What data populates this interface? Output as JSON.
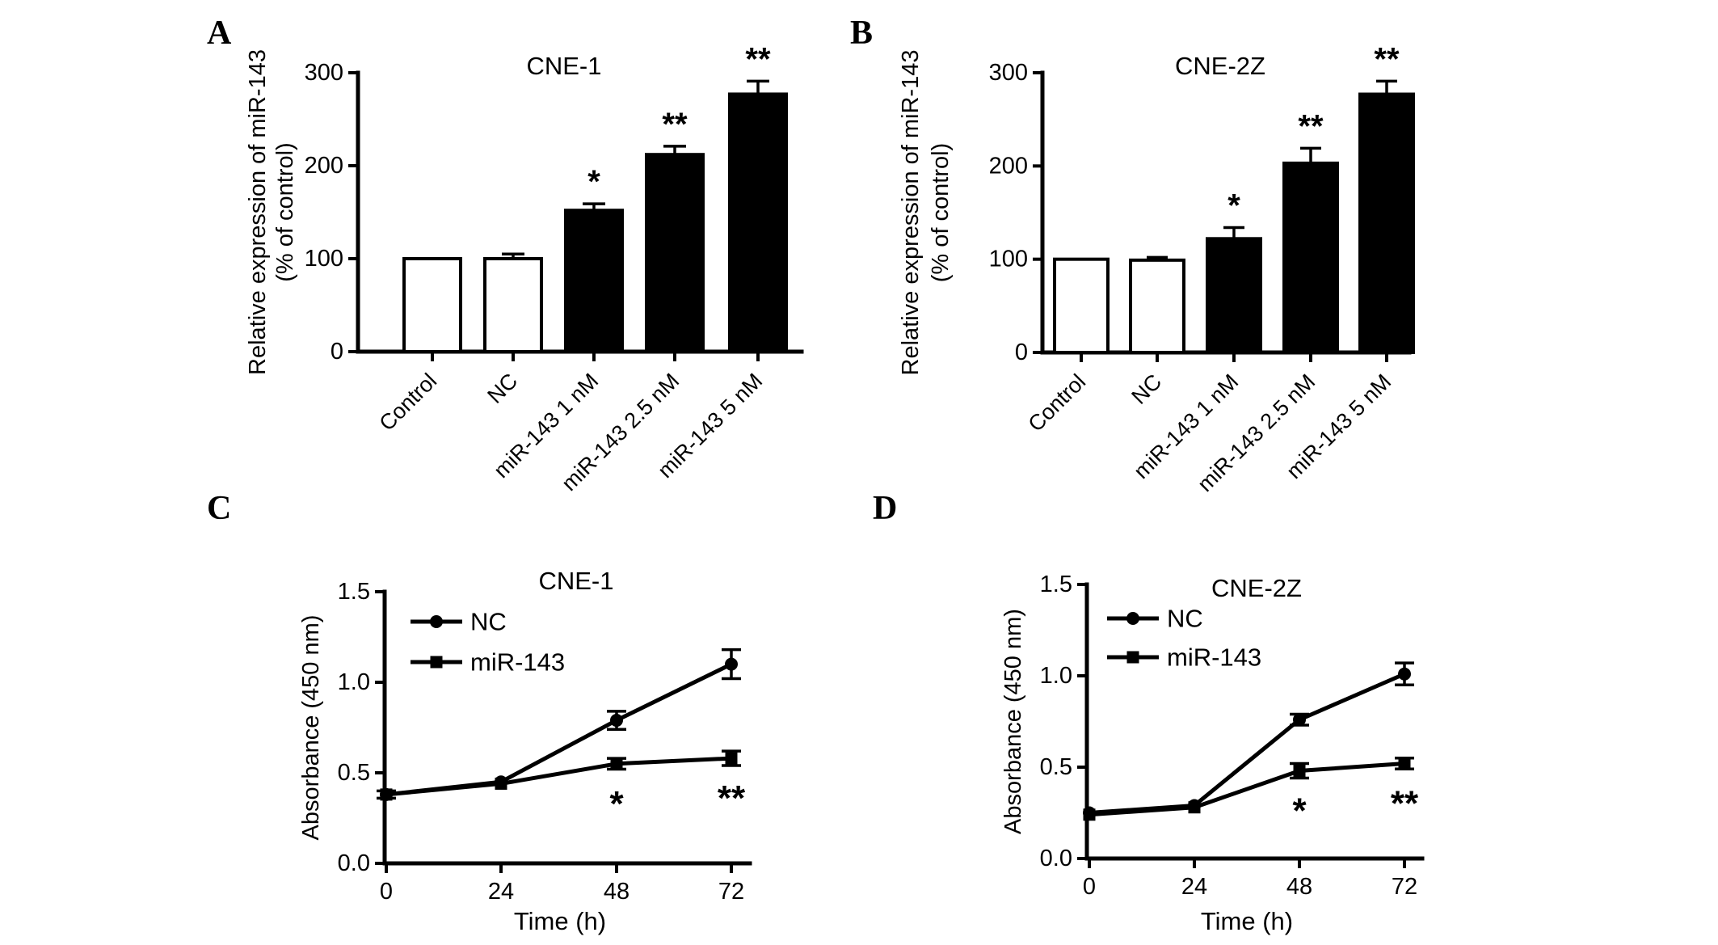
{
  "figure_background": "#ffffff",
  "ink_color": "#000000",
  "chart_data": [
    {
      "panel": "A",
      "type": "bar",
      "title": "CNE-1",
      "ylabel_lines": [
        "Relative expression of miR-143",
        "(% of control)"
      ],
      "categories": [
        "Control",
        "NC",
        "miR-143 1 nM",
        "miR-143 2.5 nM",
        "miR-143 5 nM"
      ],
      "values": [
        100,
        100,
        152,
        212,
        277
      ],
      "errors": [
        0,
        5,
        7,
        9,
        14
      ],
      "bar_colors": [
        "#ffffff",
        "#ffffff",
        "#000000",
        "#000000",
        "#000000"
      ],
      "significance": [
        "",
        "",
        "*",
        "**",
        "**"
      ],
      "yticks": [
        0,
        100,
        200,
        300
      ],
      "ylim": [
        0,
        300
      ]
    },
    {
      "panel": "B",
      "type": "bar",
      "title": "CNE-2Z",
      "ylabel_lines": [
        "Relative expression of miR-143",
        "(% of control)"
      ],
      "categories": [
        "Control",
        "NC",
        "miR-143 1 nM",
        "miR-143 2.5 nM",
        "miR-143 5 nM"
      ],
      "values": [
        100,
        99,
        122,
        203,
        277
      ],
      "errors": [
        0,
        3,
        12,
        16,
        14
      ],
      "bar_colors": [
        "#ffffff",
        "#ffffff",
        "#000000",
        "#000000",
        "#000000"
      ],
      "significance": [
        "",
        "",
        "*",
        "**",
        "**"
      ],
      "yticks": [
        0,
        100,
        200,
        300
      ],
      "ylim": [
        0,
        300
      ]
    },
    {
      "panel": "C",
      "type": "line",
      "title": "CNE-1",
      "xlabel": "Time (h)",
      "ylabel": "Absorbance (450 nm)",
      "x": [
        0,
        24,
        48,
        72
      ],
      "xticks": [
        "0",
        "24",
        "48",
        "72"
      ],
      "yticks": [
        "0.0",
        "0.5",
        "1.0",
        "1.5"
      ],
      "ylim": [
        0,
        1.5
      ],
      "legend_position": "top-left-inside",
      "series": [
        {
          "name": "NC",
          "marker": "circle",
          "values": [
            0.38,
            0.45,
            0.79,
            1.1
          ],
          "errors": [
            0.01,
            0.01,
            0.05,
            0.08
          ]
        },
        {
          "name": "miR-143",
          "marker": "square",
          "values": [
            0.38,
            0.44,
            0.55,
            0.58
          ],
          "errors": [
            0.02,
            0.01,
            0.03,
            0.04
          ]
        }
      ],
      "annotations": [
        {
          "at_x": 48,
          "text": "*"
        },
        {
          "at_x": 72,
          "text": "**"
        }
      ]
    },
    {
      "panel": "D",
      "type": "line",
      "title": "CNE-2Z",
      "xlabel": "Time (h)",
      "ylabel": "Absorbance (450 nm)",
      "x": [
        0,
        24,
        48,
        72
      ],
      "xticks": [
        "0",
        "24",
        "48",
        "72"
      ],
      "yticks": [
        "0.0",
        "0.5",
        "1.0",
        "1.5"
      ],
      "ylim": [
        0,
        1.5
      ],
      "legend_position": "top-left-inside",
      "series": [
        {
          "name": "NC",
          "marker": "circle",
          "values": [
            0.25,
            0.29,
            0.76,
            1.01
          ],
          "errors": [
            0.01,
            0.01,
            0.03,
            0.06
          ]
        },
        {
          "name": "miR-143",
          "marker": "square",
          "values": [
            0.24,
            0.28,
            0.48,
            0.52
          ],
          "errors": [
            0.01,
            0.01,
            0.04,
            0.03
          ]
        }
      ],
      "annotations": [
        {
          "at_x": 48,
          "text": "*"
        },
        {
          "at_x": 72,
          "text": "**"
        }
      ]
    }
  ]
}
